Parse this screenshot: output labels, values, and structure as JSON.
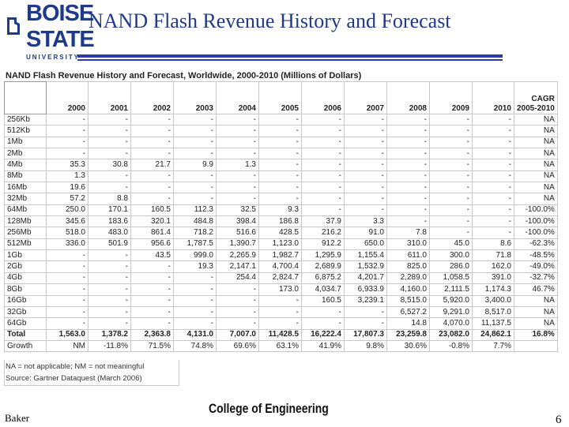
{
  "slide": {
    "title": "NAND Flash Revenue History and Forecast",
    "author": "Baker",
    "page_number": "6",
    "footer_logo": "College of Engineering",
    "brand_color": "#1e3a8a"
  },
  "logo": {
    "line1": "BOISE",
    "line2": "STATE",
    "line3": "UNIVERSITY"
  },
  "table": {
    "caption": "NAND Flash Revenue History and Forecast, Worldwide, 2000-2010 (Millions of Dollars)",
    "header": [
      "",
      "2000",
      "2001",
      "2002",
      "2003",
      "2004",
      "2005",
      "2006",
      "2007",
      "2008",
      "2009",
      "2010",
      "CAGR 2005-2010"
    ],
    "header_cagr_line1": "CAGR",
    "header_cagr_line2": "2005-2010",
    "rows": [
      [
        "256Kb",
        "-",
        "-",
        "-",
        "-",
        "-",
        "-",
        "-",
        "-",
        "-",
        "-",
        "-",
        "NA"
      ],
      [
        "512Kb",
        "-",
        "-",
        "-",
        "-",
        "-",
        "-",
        "-",
        "-",
        "-",
        "-",
        "-",
        "NA"
      ],
      [
        "1Mb",
        "-",
        "-",
        "-",
        "-",
        "-",
        "-",
        "-",
        "-",
        "-",
        "-",
        "-",
        "NA"
      ],
      [
        "2Mb",
        "-",
        "-",
        "-",
        "-",
        "-",
        "-",
        "-",
        "-",
        "-",
        "-",
        "-",
        "NA"
      ],
      [
        "4Mb",
        "35.3",
        "30.8",
        "21.7",
        "9.9",
        "1.3",
        "-",
        "-",
        "-",
        "-",
        "-",
        "-",
        "NA"
      ],
      [
        "8Mb",
        "1.3",
        "-",
        "-",
        "-",
        "-",
        "-",
        "-",
        "-",
        "-",
        "-",
        "-",
        "NA"
      ],
      [
        "16Mb",
        "19.6",
        "-",
        "-",
        "-",
        "-",
        "-",
        "-",
        "-",
        "-",
        "-",
        "-",
        "NA"
      ],
      [
        "32Mb",
        "57.2",
        "8.8",
        "-",
        "-",
        "-",
        "-",
        "-",
        "-",
        "-",
        "-",
        "-",
        "NA"
      ],
      [
        "64Mb",
        "250.0",
        "170.1",
        "160.5",
        "112.3",
        "32.5",
        "9.3",
        "-",
        "-",
        "-",
        "-",
        "-",
        "-100.0%"
      ],
      [
        "128Mb",
        "345.6",
        "183.6",
        "320.1",
        "484.8",
        "398.4",
        "186.8",
        "37.9",
        "3.3",
        "-",
        "-",
        "-",
        "-100.0%"
      ],
      [
        "256Mb",
        "518.0",
        "483.0",
        "861.4",
        "718.2",
        "516.6",
        "428.5",
        "216.2",
        "91.0",
        "7.8",
        "-",
        "-",
        "-100.0%"
      ],
      [
        "512Mb",
        "336.0",
        "501.9",
        "956.6",
        "1,787.5",
        "1,390.7",
        "1,123.0",
        "912.2",
        "650.0",
        "310.0",
        "45.0",
        "8.6",
        "-62.3%"
      ],
      [
        "1Gb",
        "-",
        "-",
        "43.5",
        "999.0",
        "2,265.9",
        "1,982.7",
        "1,295.9",
        "1,155.4",
        "611.0",
        "300.0",
        "71.8",
        "-48.5%"
      ],
      [
        "2Gb",
        "-",
        "-",
        "-",
        "19.3",
        "2,147.1",
        "4,700.4",
        "2,689.9",
        "1,532.9",
        "825.0",
        "286.0",
        "162.0",
        "-49.0%"
      ],
      [
        "4Gb",
        "-",
        "-",
        "-",
        "-",
        "254.4",
        "2,824.7",
        "6,875.2",
        "4,201.7",
        "2,289.0",
        "1,058.5",
        "391.0",
        "-32.7%"
      ],
      [
        "8Gb",
        "-",
        "-",
        "-",
        "-",
        "-",
        "173.0",
        "4,034.7",
        "6,933.9",
        "4,160.0",
        "2,111.5",
        "1,174.3",
        "46.7%"
      ],
      [
        "16Gb",
        "-",
        "-",
        "-",
        "-",
        "-",
        "-",
        "160.5",
        "3,239.1",
        "8,515.0",
        "5,920.0",
        "3,400.0",
        "NA"
      ],
      [
        "32Gb",
        "-",
        "-",
        "-",
        "-",
        "-",
        "-",
        "-",
        "-",
        "6,527.2",
        "9,291.0",
        "8,517.0",
        "NA"
      ],
      [
        "64Gb",
        "-",
        "-",
        "-",
        "-",
        "-",
        "-",
        "-",
        "-",
        "14.8",
        "4,070.0",
        "11,137.5",
        "NA"
      ]
    ],
    "total": [
      "Total",
      "1,563.0",
      "1,378.2",
      "2,363.8",
      "4,131.0",
      "7,007.0",
      "11,428.5",
      "16,222.4",
      "17,807.3",
      "23,259.8",
      "23,082.0",
      "24,862.1",
      "16.8%"
    ],
    "growth": [
      "Growth",
      "NM",
      "-11.8%",
      "71.5%",
      "74.8%",
      "69.6%",
      "63.1%",
      "41.9%",
      "9.8%",
      "30.6%",
      "-0.8%",
      "7.7%",
      ""
    ],
    "note": "NA = not applicable; NM = not meaningful",
    "source": "Source: Gartner Dataquest (March 2006)"
  }
}
